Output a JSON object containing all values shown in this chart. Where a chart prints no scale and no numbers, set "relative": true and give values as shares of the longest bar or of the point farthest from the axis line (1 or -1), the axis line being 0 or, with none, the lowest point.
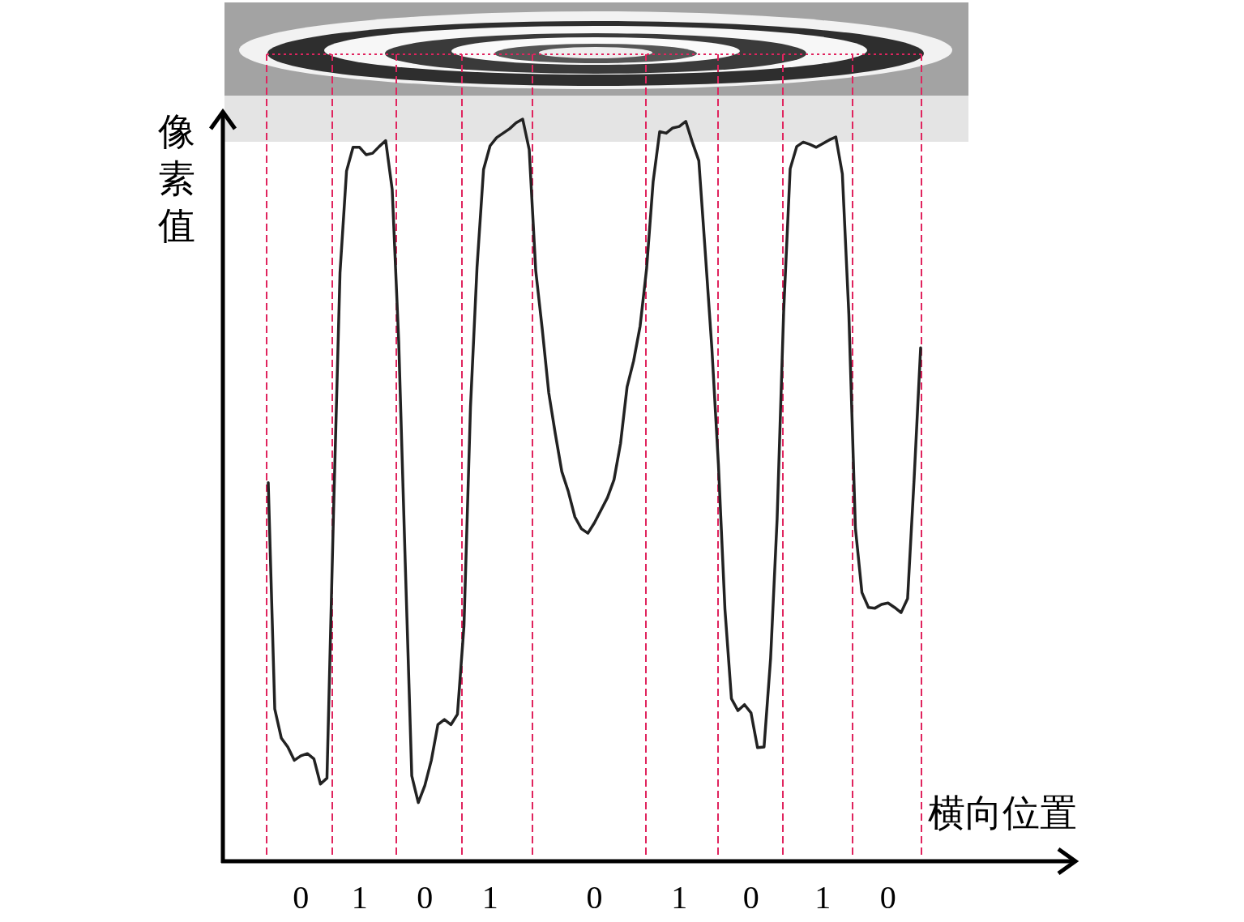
{
  "chart_data": {
    "type": "line",
    "xlabel": "横向位置",
    "ylabel": "像素值",
    "relative": true,
    "color": "#222222",
    "categories": [
      null,
      null,
      null,
      null,
      null,
      "0",
      null,
      null,
      null,
      null,
      null,
      null,
      null,
      null,
      "1",
      null,
      null,
      null,
      null,
      null,
      null,
      null,
      null,
      null,
      "0",
      null,
      null,
      null,
      null,
      null,
      null,
      null,
      null,
      null,
      "1",
      null,
      null,
      null,
      null,
      null,
      null,
      null,
      null,
      null,
      null,
      null,
      null,
      null,
      null,
      null,
      "0",
      null,
      null,
      null,
      null,
      null,
      null,
      null,
      null,
      null,
      null,
      null,
      null,
      "1",
      null,
      null,
      null,
      null,
      null,
      null,
      null,
      null,
      null,
      null,
      "0",
      null,
      null,
      null,
      null,
      null,
      null,
      null,
      null,
      null,
      null,
      "1",
      null,
      null,
      null,
      null,
      null,
      null,
      null,
      null,
      null,
      "0",
      null,
      null,
      null,
      null,
      null
    ],
    "values": [
      0.51,
      0.205,
      0.166,
      0.154,
      0.136,
      0.142,
      0.145,
      0.138,
      0.104,
      0.112,
      0.468,
      0.793,
      0.93,
      0.962,
      0.962,
      0.952,
      0.954,
      0.963,
      0.971,
      0.905,
      0.7,
      0.402,
      0.115,
      0.079,
      0.102,
      0.136,
      0.184,
      0.191,
      0.184,
      0.198,
      0.317,
      0.612,
      0.8,
      0.932,
      0.964,
      0.975,
      0.981,
      0.987,
      0.995,
      1,
      0.959,
      0.796,
      0.717,
      0.631,
      0.576,
      0.525,
      0.498,
      0.464,
      0.448,
      0.442,
      0.456,
      0.473,
      0.49,
      0.514,
      0.563,
      0.639,
      0.674,
      0.721,
      0.799,
      0.916,
      0.983,
      0.981,
      0.988,
      0.99,
      0.997,
      0.969,
      0.944,
      0.819,
      0.691,
      0.535,
      0.34,
      0.219,
      0.203,
      0.211,
      0.2,
      0.153,
      0.154,
      0.273,
      0.461,
      0.74,
      0.933,
      0.963,
      0.969,
      0.966,
      0.962,
      0.967,
      0.972,
      0.976,
      0.926,
      0.736,
      0.449,
      0.362,
      0.342,
      0.341,
      0.346,
      0.348,
      0.342,
      0.335,
      0.354,
      0.515,
      0.692
    ]
  }
}
